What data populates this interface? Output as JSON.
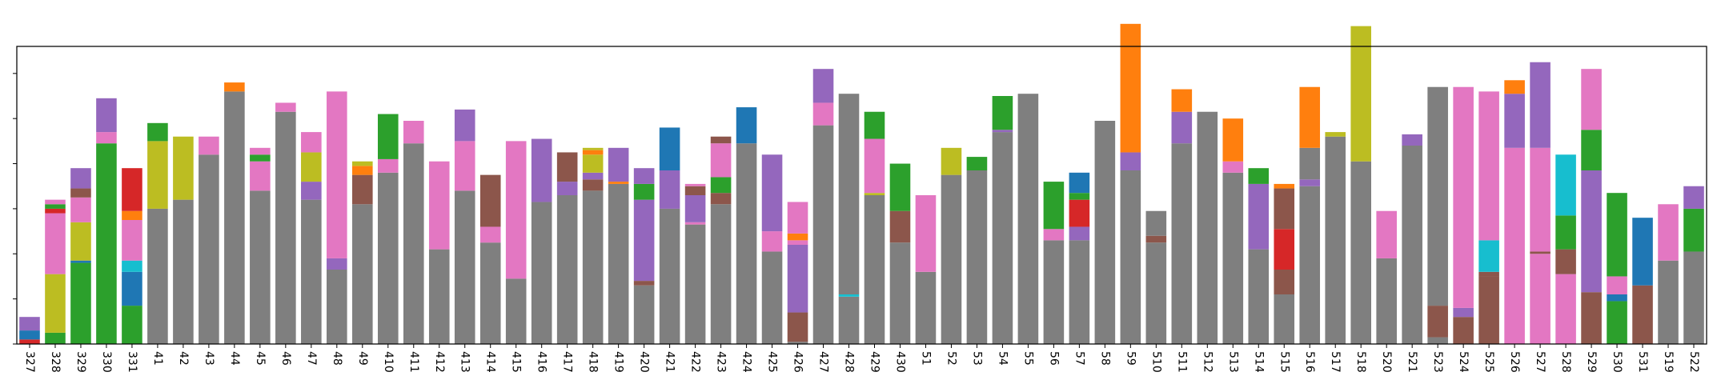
{
  "colors": {
    "blue": "#1f77b4",
    "orange": "#ff7f0e",
    "green": "#2ca02c",
    "red": "#d62728",
    "purple": "#9467bd",
    "brown": "#8c564b",
    "pink": "#e377c2",
    "gray": "#7f7f7f",
    "olive": "#bcbd22",
    "cyan": "#17becf"
  },
  "chart_data": {
    "type": "bar",
    "stacked": true,
    "title": "",
    "xlabel": "",
    "ylabel": "",
    "ylim": [
      0,
      1.32
    ],
    "grid": false,
    "legend": "none",
    "categories": [
      "327",
      "328",
      "329",
      "330",
      "331",
      "41",
      "42",
      "43",
      "44",
      "45",
      "46",
      "47",
      "48",
      "49",
      "410",
      "411",
      "412",
      "413",
      "414",
      "415",
      "416",
      "417",
      "418",
      "419",
      "420",
      "421",
      "422",
      "423",
      "424",
      "425",
      "426",
      "427",
      "428",
      "429",
      "430",
      "51",
      "52",
      "53",
      "54",
      "55",
      "56",
      "57",
      "58",
      "59",
      "510",
      "511",
      "512",
      "513",
      "514",
      "515",
      "516",
      "517",
      "518",
      "520",
      "521",
      "523",
      "524",
      "525",
      "526",
      "527",
      "528",
      "529",
      "530",
      "531",
      "519",
      "522"
    ],
    "bars": [
      [
        [
          "red",
          0.02
        ],
        [
          "blue",
          0.04
        ],
        [
          "purple",
          0.06
        ]
      ],
      [
        [
          "green",
          0.05
        ],
        [
          "olive",
          0.26
        ],
        [
          "pink",
          0.27
        ],
        [
          "red",
          0.02
        ],
        [
          "green",
          0.02
        ],
        [
          "pink",
          0.02
        ]
      ],
      [
        [
          "green",
          0.36
        ],
        [
          "blue",
          0.01
        ],
        [
          "olive",
          0.17
        ],
        [
          "pink",
          0.11
        ],
        [
          "brown",
          0.04
        ],
        [
          "purple",
          0.09
        ]
      ],
      [
        [
          "green",
          0.89
        ],
        [
          "pink",
          0.05
        ],
        [
          "purple",
          0.15
        ]
      ],
      [
        [
          "green",
          0.17
        ],
        [
          "blue",
          0.15
        ],
        [
          "cyan",
          0.05
        ],
        [
          "pink",
          0.18
        ],
        [
          "orange",
          0.04
        ],
        [
          "red",
          0.19
        ]
      ],
      [
        [
          "gray",
          0.6
        ],
        [
          "olive",
          0.3
        ],
        [
          "green",
          0.08
        ]
      ],
      [
        [
          "gray",
          0.64
        ],
        [
          "olive",
          0.28
        ]
      ],
      [
        [
          "gray",
          0.84
        ],
        [
          "pink",
          0.08
        ]
      ],
      [
        [
          "gray",
          1.12
        ],
        [
          "orange",
          0.04
        ]
      ],
      [
        [
          "gray",
          0.68
        ],
        [
          "pink",
          0.13
        ],
        [
          "green",
          0.03
        ],
        [
          "pink",
          0.03
        ]
      ],
      [
        [
          "gray",
          1.03
        ],
        [
          "pink",
          0.04
        ]
      ],
      [
        [
          "gray",
          0.64
        ],
        [
          "purple",
          0.08
        ],
        [
          "olive",
          0.13
        ],
        [
          "pink",
          0.09
        ]
      ],
      [
        [
          "gray",
          0.33
        ],
        [
          "purple",
          0.05
        ],
        [
          "pink",
          0.74
        ]
      ],
      [
        [
          "gray",
          0.62
        ],
        [
          "brown",
          0.13
        ],
        [
          "orange",
          0.04
        ],
        [
          "olive",
          0.02
        ]
      ],
      [
        [
          "gray",
          0.76
        ],
        [
          "pink",
          0.06
        ],
        [
          "green",
          0.2
        ]
      ],
      [
        [
          "gray",
          0.89
        ],
        [
          "pink",
          0.1
        ]
      ],
      [
        [
          "gray",
          0.42
        ],
        [
          "pink",
          0.39
        ]
      ],
      [
        [
          "gray",
          0.68
        ],
        [
          "pink",
          0.22
        ],
        [
          "purple",
          0.14
        ]
      ],
      [
        [
          "gray",
          0.45
        ],
        [
          "pink",
          0.07
        ],
        [
          "brown",
          0.23
        ]
      ],
      [
        [
          "gray",
          0.29
        ],
        [
          "pink",
          0.61
        ]
      ],
      [
        [
          "gray",
          0.63
        ],
        [
          "purple",
          0.28
        ]
      ],
      [
        [
          "gray",
          0.66
        ],
        [
          "purple",
          0.06
        ],
        [
          "brown",
          0.13
        ]
      ],
      [
        [
          "gray",
          0.68
        ],
        [
          "brown",
          0.05
        ],
        [
          "purple",
          0.03
        ],
        [
          "olive",
          0.08
        ],
        [
          "orange",
          0.02
        ],
        [
          "olive",
          0.01
        ]
      ],
      [
        [
          "gray",
          0.71
        ],
        [
          "orange",
          0.01
        ],
        [
          "purple",
          0.15
        ]
      ],
      [
        [
          "gray",
          0.26
        ],
        [
          "brown",
          0.02
        ],
        [
          "purple",
          0.36
        ],
        [
          "green",
          0.07
        ],
        [
          "purple",
          0.07
        ]
      ],
      [
        [
          "gray",
          0.6
        ],
        [
          "purple",
          0.17
        ],
        [
          "blue",
          0.19
        ]
      ],
      [
        [
          "gray",
          0.53
        ],
        [
          "pink",
          0.01
        ],
        [
          "purple",
          0.12
        ],
        [
          "brown",
          0.04
        ],
        [
          "pink",
          0.01
        ]
      ],
      [
        [
          "gray",
          0.62
        ],
        [
          "brown",
          0.05
        ],
        [
          "green",
          0.07
        ],
        [
          "pink",
          0.15
        ],
        [
          "brown",
          0.03
        ]
      ],
      [
        [
          "gray",
          0.89
        ],
        [
          "blue",
          0.16
        ]
      ],
      [
        [
          "gray",
          0.41
        ],
        [
          "pink",
          0.09
        ],
        [
          "purple",
          0.34
        ]
      ],
      [
        [
          "gray",
          0.01
        ],
        [
          "brown",
          0.13
        ],
        [
          "purple",
          0.3
        ],
        [
          "pink",
          0.02
        ],
        [
          "orange",
          0.03
        ],
        [
          "pink",
          0.14
        ]
      ],
      [
        [
          "gray",
          0.97
        ],
        [
          "pink",
          0.1
        ],
        [
          "purple",
          0.15
        ]
      ],
      [
        [
          "gray",
          0.21
        ],
        [
          "cyan",
          0.01
        ],
        [
          "gray",
          0.89
        ]
      ],
      [
        [
          "gray",
          0.66
        ],
        [
          "olive",
          0.01
        ],
        [
          "pink",
          0.24
        ],
        [
          "green",
          0.12
        ]
      ],
      [
        [
          "gray",
          0.45
        ],
        [
          "brown",
          0.14
        ],
        [
          "green",
          0.21
        ]
      ],
      [
        [
          "gray",
          0.32
        ],
        [
          "pink",
          0.34
        ]
      ],
      [
        [
          "gray",
          0.75
        ],
        [
          "olive",
          0.12
        ]
      ],
      [
        [
          "gray",
          0.77
        ],
        [
          "green",
          0.06
        ]
      ],
      [
        [
          "gray",
          0.94
        ],
        [
          "purple",
          0.01
        ],
        [
          "green",
          0.15
        ]
      ],
      [
        [
          "gray",
          1.11
        ]
      ],
      [
        [
          "gray",
          0.46
        ],
        [
          "pink",
          0.05
        ],
        [
          "green",
          0.21
        ]
      ],
      [
        [
          "gray",
          0.46
        ],
        [
          "purple",
          0.06
        ],
        [
          "red",
          0.12
        ],
        [
          "green",
          0.03
        ],
        [
          "blue",
          0.09
        ]
      ],
      [
        [
          "gray",
          0.99
        ]
      ],
      [
        [
          "gray",
          0.77
        ],
        [
          "purple",
          0.08
        ],
        [
          "orange",
          0.57
        ]
      ],
      [
        [
          "gray",
          0.45
        ],
        [
          "brown",
          0.03
        ],
        [
          "gray",
          0.11
        ]
      ],
      [
        [
          "gray",
          0.89
        ],
        [
          "purple",
          0.14
        ],
        [
          "orange",
          0.1
        ]
      ],
      [
        [
          "gray",
          1.03
        ]
      ],
      [
        [
          "gray",
          0.76
        ],
        [
          "pink",
          0.05
        ],
        [
          "orange",
          0.19
        ]
      ],
      [
        [
          "gray",
          0.42
        ],
        [
          "purple",
          0.29
        ],
        [
          "green",
          0.07
        ]
      ],
      [
        [
          "gray",
          0.22
        ],
        [
          "brown",
          0.11
        ],
        [
          "red",
          0.18
        ],
        [
          "brown",
          0.18
        ],
        [
          "orange",
          0.02
        ]
      ],
      [
        [
          "gray",
          0.7
        ],
        [
          "purple",
          0.03
        ],
        [
          "gray",
          0.14
        ],
        [
          "orange",
          0.27
        ]
      ],
      [
        [
          "gray",
          0.92
        ],
        [
          "olive",
          0.02
        ]
      ],
      [
        [
          "gray",
          0.81
        ],
        [
          "olive",
          0.6
        ]
      ],
      [
        [
          "gray",
          0.38
        ],
        [
          "pink",
          0.21
        ]
      ],
      [
        [
          "gray",
          0.88
        ],
        [
          "purple",
          0.05
        ]
      ],
      [
        [
          "gray",
          0.03
        ],
        [
          "brown",
          0.14
        ],
        [
          "gray",
          0.97
        ]
      ],
      [
        [
          "brown",
          0.12
        ],
        [
          "purple",
          0.04
        ],
        [
          "pink",
          0.98
        ]
      ],
      [
        [
          "brown",
          0.3
        ],
        [
          "brown",
          0.02
        ],
        [
          "cyan",
          0.14
        ],
        [
          "pink",
          0.66
        ]
      ],
      [
        [
          "pink",
          0.87
        ],
        [
          "purple",
          0.24
        ],
        [
          "orange",
          0.06
        ]
      ],
      [
        [
          "pink",
          0.4
        ],
        [
          "brown",
          0.01
        ],
        [
          "pink",
          0.46
        ],
        [
          "purple",
          0.38
        ]
      ],
      [
        [
          "pink",
          0.31
        ],
        [
          "brown",
          0.11
        ],
        [
          "green",
          0.15
        ],
        [
          "cyan",
          0.27
        ]
      ],
      [
        [
          "brown",
          0.23
        ],
        [
          "purple",
          0.54
        ],
        [
          "green",
          0.18
        ],
        [
          "pink",
          0.27
        ]
      ],
      [
        [
          "green",
          0.19
        ],
        [
          "blue",
          0.03
        ],
        [
          "pink",
          0.08
        ],
        [
          "green",
          0.37
        ]
      ],
      [
        [
          "brown",
          0.26
        ],
        [
          "blue",
          0.3
        ]
      ],
      [
        [
          "gray",
          0.37
        ],
        [
          "pink",
          0.25
        ]
      ],
      [
        [
          "gray",
          0.41
        ],
        [
          "green",
          0.19
        ],
        [
          "purple",
          0.1
        ]
      ]
    ]
  }
}
